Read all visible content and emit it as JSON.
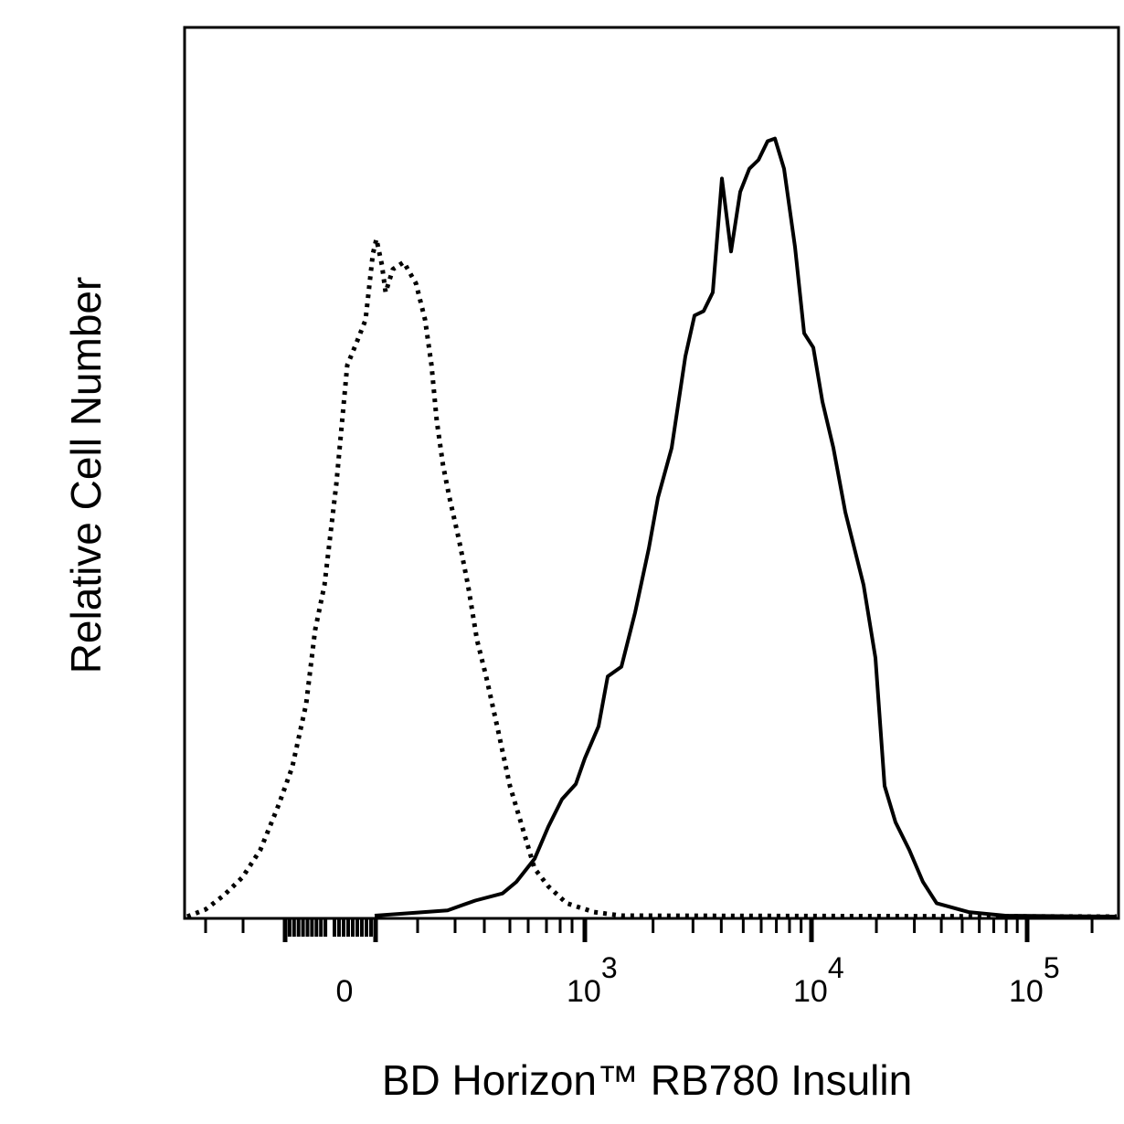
{
  "chart_data": {
    "type": "line",
    "title": "",
    "xlabel": "BD Horizon™ RB780 Insulin",
    "ylabel": "Relative Cell Number",
    "x_scale": "biexponential",
    "xlim": [
      -350,
      260000
    ],
    "ylim": [
      0,
      100
    ],
    "grid": false,
    "legend": "none",
    "colors": {
      "line": "#000000",
      "background": "#ffffff"
    },
    "x_tick_labels": [
      {
        "value": 0,
        "base": "0",
        "exp": ""
      },
      {
        "value": 1000,
        "base": "10",
        "exp": "3"
      },
      {
        "value": 10000,
        "base": "10",
        "exp": "4"
      },
      {
        "value": 100000,
        "base": "10",
        "exp": "5"
      }
    ],
    "series": [
      {
        "style": "dotted",
        "x": [
          -349,
          -300,
          -251,
          -202,
          -159,
          -115,
          -84,
          -53,
          -33,
          -12,
          14,
          38,
          58,
          78,
          94,
          102,
          115,
          124,
          141,
          167,
          196,
          220,
          237,
          251,
          268,
          285,
          313,
          344,
          375,
          407,
          454,
          500,
          560,
          635,
          713,
          854,
          1097,
          1450,
          260200
        ],
        "y": [
          0,
          0.8,
          2.4,
          4.4,
          7.5,
          12.6,
          16.8,
          23.9,
          32.2,
          37.3,
          48.6,
          62.0,
          64.5,
          67.1,
          74.5,
          76.2,
          73.3,
          70.2,
          72.8,
          73.6,
          71.2,
          67.1,
          62.0,
          55.8,
          50.7,
          47.1,
          42.4,
          37.3,
          31.1,
          27.0,
          20.9,
          14.7,
          10.6,
          5.4,
          3.4,
          1.5,
          0.5,
          0.1,
          0
        ]
      },
      {
        "style": "solid",
        "x": [
          98,
          185,
          280,
          369,
          471,
          535,
          635,
          713,
          815,
          929,
          1000,
          1149,
          1261,
          1450,
          1667,
          1916,
          2102,
          2416,
          2777,
          3047,
          3344,
          3668,
          4025,
          4418,
          4848,
          5318,
          5836,
          6405,
          6899,
          7568,
          8462,
          9284,
          10197,
          11240,
          12640,
          14350,
          17440,
          19800,
          21830,
          24540,
          28400,
          32880,
          38060,
          53560,
          79130,
          260200
        ],
        "y": [
          0.1,
          0.4,
          0.7,
          1.8,
          2.6,
          3.9,
          6.5,
          10.1,
          13.2,
          14.9,
          17.8,
          21.4,
          27.0,
          28.1,
          34.2,
          41.4,
          47.1,
          52.7,
          63.0,
          67.6,
          68.1,
          70.2,
          83.0,
          74.8,
          81.5,
          84.1,
          85.1,
          87.2,
          87.5,
          84.1,
          75.3,
          65.6,
          64.0,
          57.9,
          52.7,
          45.5,
          37.3,
          29.1,
          14.7,
          10.6,
          7.5,
          3.9,
          1.5,
          0.5,
          0.1,
          0
        ]
      }
    ]
  }
}
